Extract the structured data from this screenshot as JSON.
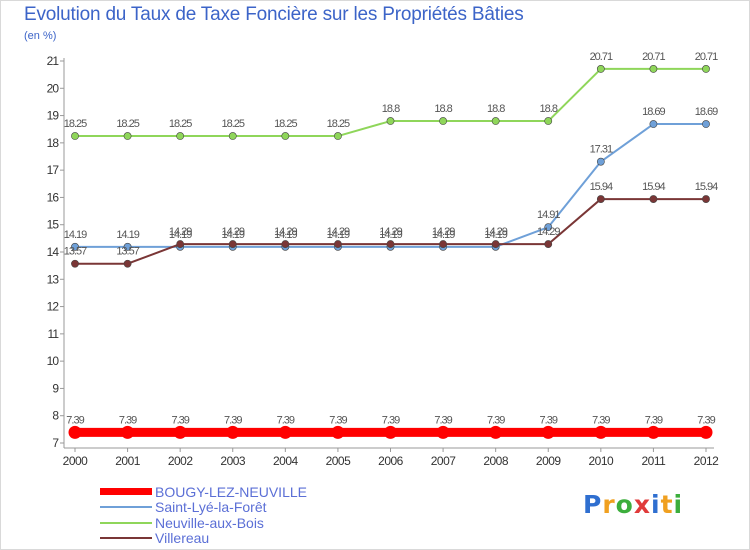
{
  "chart_data": {
    "type": "line",
    "title": "Evolution du Taux de Taxe Foncière sur les Propriétés Bâties",
    "subtitle": "(en %)",
    "x": [
      "2000",
      "2001",
      "2002",
      "2003",
      "2004",
      "2005",
      "2006",
      "2007",
      "2008",
      "2009",
      "2010",
      "2011",
      "2012"
    ],
    "ylim": [
      7,
      21
    ],
    "yticks": [
      "7",
      "8",
      "9",
      "10",
      "11",
      "12",
      "13",
      "14",
      "15",
      "16",
      "17",
      "18",
      "19",
      "20",
      "21"
    ],
    "grid": false,
    "legend_position": "bottom-left",
    "series": [
      {
        "name": "BOUGY-LEZ-NEUVILLE",
        "color": "#ff0000",
        "values": [
          7.39,
          7.39,
          7.39,
          7.39,
          7.39,
          7.39,
          7.39,
          7.39,
          7.39,
          7.39,
          7.39,
          7.39,
          7.39
        ],
        "labels": [
          "7.39",
          "7.39",
          "7.39",
          "7.39",
          "7.39",
          "7.39",
          "7.39",
          "7.39",
          "7.39",
          "7.39",
          "7.39",
          "7.39",
          "7.39"
        ]
      },
      {
        "name": "Saint-Lyé-la-Forêt",
        "color": "#6fa0d8",
        "values": [
          14.19,
          14.19,
          14.19,
          14.19,
          14.19,
          14.19,
          14.19,
          14.19,
          14.19,
          14.91,
          17.31,
          18.69,
          18.69
        ],
        "labels": [
          "14.19",
          "14.19",
          "14.19",
          "14.19",
          "14.19",
          "14.19",
          "14.19",
          "14.19",
          "14.19",
          "14.91",
          "17.31",
          "18.69",
          "18.69"
        ]
      },
      {
        "name": "Neuville-aux-Bois",
        "color": "#8fd65a",
        "values": [
          18.25,
          18.25,
          18.25,
          18.25,
          18.25,
          18.25,
          18.8,
          18.8,
          18.8,
          18.8,
          20.71,
          20.71,
          20.71
        ],
        "labels": [
          "18.25",
          "18.25",
          "18.25",
          "18.25",
          "18.25",
          "18.25",
          "18.8",
          "18.8",
          "18.8",
          "18.8",
          "20.71",
          "20.71",
          "20.71"
        ]
      },
      {
        "name": "Villereau",
        "color": "#7a3636",
        "values": [
          13.57,
          13.57,
          14.29,
          14.29,
          14.29,
          14.29,
          14.29,
          14.29,
          14.29,
          14.29,
          15.94,
          15.94,
          15.94
        ],
        "labels": [
          "13.57",
          "13.57",
          "14.29",
          "14.29",
          "14.29",
          "14.29",
          "14.29",
          "14.29",
          "14.29",
          "14.29",
          "15.94",
          "15.94",
          "15.94"
        ]
      }
    ]
  },
  "logo": {
    "letters": [
      "P",
      "r",
      "o",
      "x",
      "i",
      "t",
      "i"
    ],
    "colors": [
      "#2f6fd0",
      "#f0a020",
      "#3cae3c",
      "#e03a3a",
      "#2f6fd0",
      "#f0a020",
      "#3cae3c"
    ]
  }
}
